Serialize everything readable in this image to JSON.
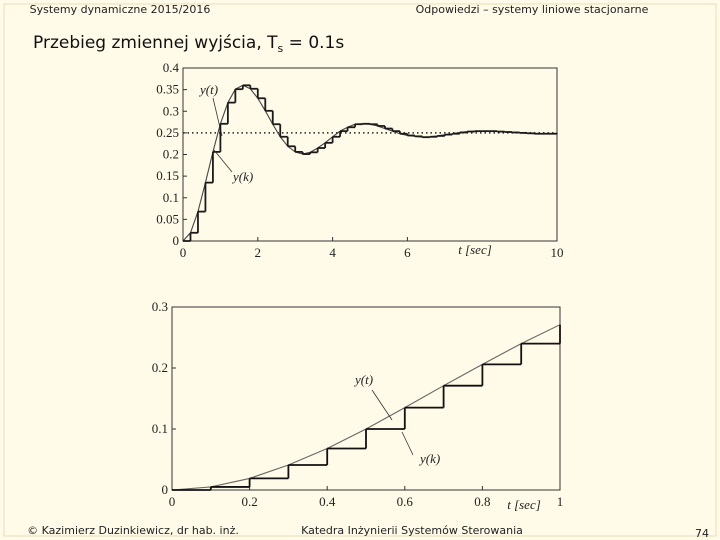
{
  "header": {
    "left": "Systemy dynamiczne 2015/2016",
    "right": "Odpowiedzi – systemy liniowe stacjonarne"
  },
  "heading": [
    "Przebieg zmiennej wyjścia, T",
    "s",
    " = 0.1s"
  ],
  "footer": {
    "left": "© Kazimierz Duzinkiewicz, dr hab. inż.",
    "center": "Katedra Inżynierii Systemów Sterowania",
    "page": 74
  },
  "chart_data": [
    {
      "type": "line",
      "x": [
        0,
        0.2,
        0.4,
        0.6,
        0.8,
        1,
        1.2,
        1.4,
        1.6,
        1.8,
        2,
        2.2,
        2.4,
        2.6,
        2.8,
        3,
        3.2,
        3.4,
        3.6,
        3.8,
        4,
        4.2,
        4.4,
        4.6,
        4.8,
        5,
        5.2,
        5.4,
        5.6,
        5.8,
        6,
        6.2,
        6.4,
        6.6,
        6.8,
        7,
        7.2,
        7.4,
        7.6,
        7.8,
        8,
        8.2,
        8.4,
        8.6,
        8.8,
        9,
        9.2,
        9.4,
        9.6,
        9.8,
        10
      ],
      "series": [
        {
          "name": "y(t)",
          "color": "#444444",
          "values": [
            0,
            0.019,
            0.068,
            0.135,
            0.206,
            0.271,
            0.32,
            0.351,
            0.36,
            0.352,
            0.33,
            0.301,
            0.27,
            0.241,
            0.219,
            0.206,
            0.201,
            0.205,
            0.215,
            0.227,
            0.241,
            0.254,
            0.263,
            0.27,
            0.271,
            0.27,
            0.266,
            0.26,
            0.254,
            0.248,
            0.244,
            0.242,
            0.24,
            0.241,
            0.243,
            0.246,
            0.248,
            0.251,
            0.253,
            0.254,
            0.254,
            0.254,
            0.253,
            0.252,
            0.251,
            0.25,
            0.249,
            0.248,
            0.248,
            0.248,
            0.249
          ]
        },
        {
          "name": "y(k)",
          "color": "#1a1a1a",
          "step": true,
          "values": [
            0,
            0.019,
            0.068,
            0.135,
            0.206,
            0.271,
            0.32,
            0.351,
            0.36,
            0.352,
            0.33,
            0.301,
            0.27,
            0.241,
            0.219,
            0.206,
            0.201,
            0.205,
            0.215,
            0.227,
            0.241,
            0.254,
            0.263,
            0.27,
            0.271,
            0.27,
            0.266,
            0.26,
            0.254,
            0.248,
            0.244,
            0.242,
            0.24,
            0.241,
            0.243,
            0.246,
            0.248,
            0.251,
            0.253,
            0.254,
            0.254,
            0.254,
            0.253,
            0.252,
            0.251,
            0.25,
            0.249,
            0.248,
            0.248,
            0.248,
            0.249
          ]
        }
      ],
      "xlim": [
        0,
        10
      ],
      "ylim": [
        0,
        0.4
      ],
      "xticks": [
        0,
        2,
        4,
        6,
        10
      ],
      "yticks": [
        0,
        0.05,
        0.1,
        0.15,
        0.2,
        0.25,
        0.3,
        0.35,
        0.4
      ],
      "xlabel": "t [sec]",
      "reference_line": 0.25
    },
    {
      "type": "line",
      "x": [
        0,
        0.1,
        0.2,
        0.3,
        0.4,
        0.5,
        0.6,
        0.7,
        0.8,
        0.9,
        1
      ],
      "series": [
        {
          "name": "y(t)",
          "color": "#666666",
          "values": [
            0,
            0.005,
            0.019,
            0.041,
            0.068,
            0.1,
            0.135,
            0.171,
            0.206,
            0.24,
            0.271
          ]
        },
        {
          "name": "y(k)",
          "color": "#111111",
          "step": true,
          "values": [
            0,
            0.005,
            0.019,
            0.041,
            0.068,
            0.1,
            0.135,
            0.171,
            0.206,
            0.24,
            0.271
          ]
        }
      ],
      "xlim": [
        0,
        1
      ],
      "ylim": [
        0,
        0.3
      ],
      "xticks": [
        0,
        0.2,
        0.4,
        0.6,
        0.8,
        1
      ],
      "yticks": [
        0,
        0.1,
        0.2,
        0.3
      ],
      "xlabel": "t [sec]"
    }
  ]
}
